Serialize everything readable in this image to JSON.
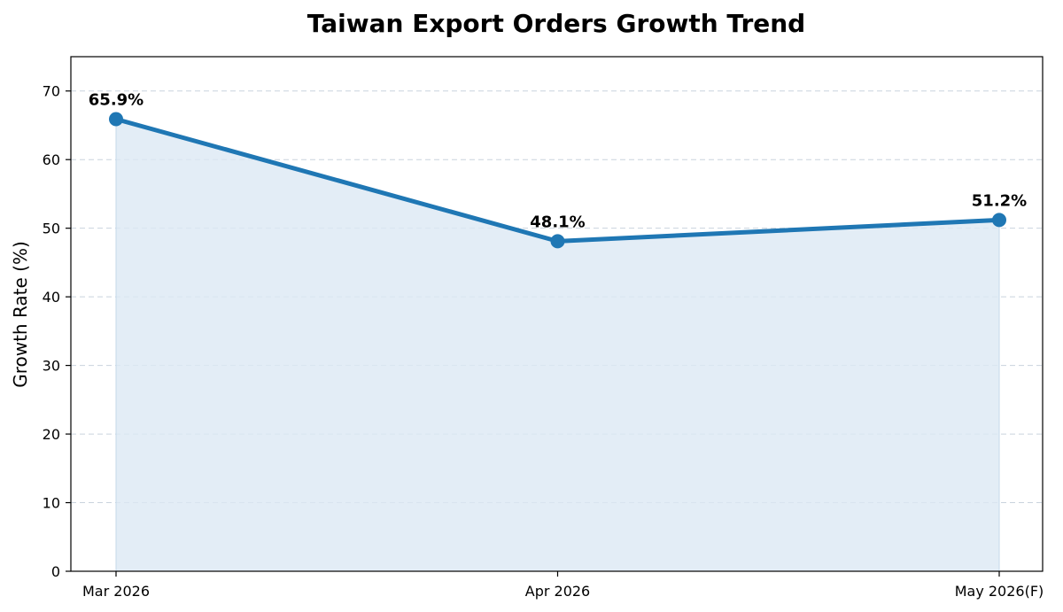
{
  "chart_data": {
    "type": "area",
    "title": "Taiwan Export Orders Growth Trend",
    "xlabel": "",
    "ylabel": "Growth Rate (%)",
    "categories": [
      "Mar 2026",
      "Apr 2026",
      "May 2026(F)"
    ],
    "series": [
      {
        "values": [
          65.9,
          48.1,
          51.2
        ],
        "labels": [
          "65.9%",
          "48.1%",
          "51.2%"
        ],
        "color": "#1f77b4",
        "fill_color": "#dce9f4"
      }
    ],
    "ylim": [
      0,
      75
    ],
    "yticks": [
      0,
      10,
      20,
      30,
      40,
      50,
      60,
      70
    ],
    "grid": "y-dashed",
    "legend": "none"
  }
}
